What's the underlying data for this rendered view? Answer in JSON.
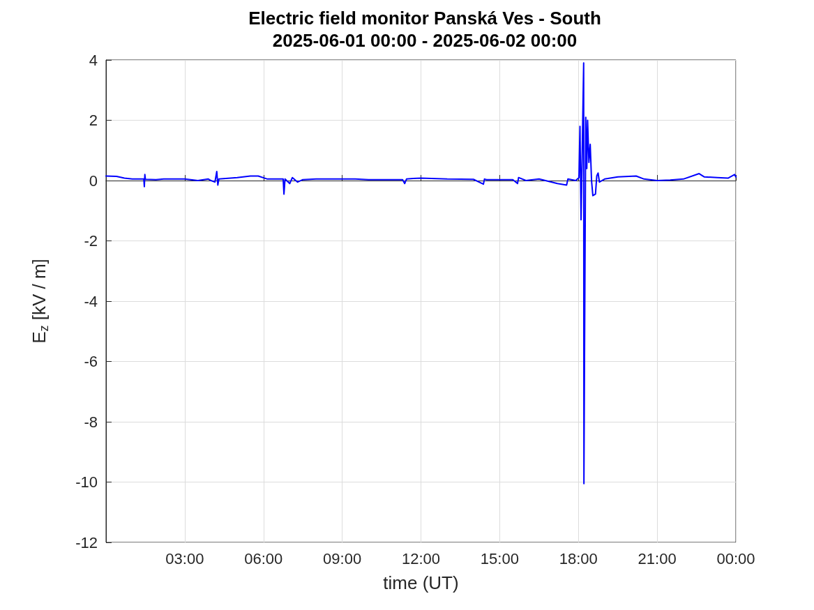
{
  "chart_data": {
    "type": "line",
    "title": "Electric field monitor Panská Ves - South",
    "subtitle": "2025-06-01 00:00 - 2025-06-02 00:00",
    "xlabel": "time (UT)",
    "ylabel": "E$_{z}$ [kV / m]",
    "xlim": [
      0,
      24
    ],
    "xticks": [
      {
        "value": 3,
        "label": "03:00"
      },
      {
        "value": 6,
        "label": "06:00"
      },
      {
        "value": 9,
        "label": "09:00"
      },
      {
        "value": 12,
        "label": "12:00"
      },
      {
        "value": 15,
        "label": "15:00"
      },
      {
        "value": 18,
        "label": "18:00"
      },
      {
        "value": 21,
        "label": "21:00"
      },
      {
        "value": 24,
        "label": "00:00"
      }
    ],
    "ylim": [
      -12,
      4
    ],
    "yticks": [
      -12,
      -10,
      -8,
      -6,
      -4,
      -2,
      0,
      2,
      4
    ],
    "grid": true,
    "series": [
      {
        "color": "#0000ff",
        "x": [
          0,
          0.4,
          0.7,
          1.0,
          1.3,
          1.44,
          1.46,
          1.48,
          1.5,
          1.9,
          2.2,
          3.0,
          3.5,
          3.9,
          4.0,
          4.15,
          4.22,
          4.26,
          4.3,
          5.0,
          5.5,
          5.8,
          6.15,
          6.75,
          6.78,
          6.82,
          7.0,
          7.1,
          7.3,
          7.5,
          8,
          8.5,
          9.5,
          10,
          11,
          11.3,
          11.38,
          11.45,
          11.7,
          12,
          13,
          14,
          14.38,
          14.42,
          14.5,
          15.5,
          15.68,
          15.72,
          16,
          16.5,
          17.2,
          17.55,
          17.6,
          17.9,
          18.02,
          18.06,
          18.1,
          18.15,
          18.2,
          18.21,
          18.23,
          18.28,
          18.32,
          18.35,
          18.4,
          18.45,
          18.5,
          18.55,
          18.65,
          18.7,
          18.75,
          18.8,
          19,
          19.5,
          20.2,
          20.5,
          21,
          21.5,
          22,
          22.6,
          22.8,
          23.3,
          23.7,
          23.95,
          24
        ],
        "values": [
          0.15,
          0.14,
          0.08,
          0.05,
          0.05,
          0.05,
          -0.2,
          0.2,
          0.04,
          0.03,
          0.05,
          0.05,
          0,
          0.05,
          0,
          -0.05,
          0.3,
          -0.15,
          0.05,
          0.1,
          0.15,
          0.15,
          0.05,
          0.05,
          -0.45,
          0.05,
          -0.1,
          0.1,
          -0.05,
          0.03,
          0.05,
          0.05,
          0.05,
          0.03,
          0.03,
          0.03,
          -0.1,
          0.05,
          0.07,
          0.08,
          0.05,
          0.04,
          -0.12,
          0.05,
          0.03,
          0.03,
          -0.1,
          0.1,
          0,
          0.05,
          -0.1,
          -0.15,
          0.05,
          0,
          0.1,
          1.8,
          -1.3,
          1.2,
          3.9,
          -10.05,
          -6.3,
          2.1,
          0.4,
          2,
          0.6,
          1.2,
          0,
          -0.5,
          -0.45,
          0.16,
          0.25,
          -0.05,
          0.05,
          0.12,
          0.15,
          0.05,
          0,
          0.02,
          0.05,
          0.23,
          0.12,
          0.1,
          0.08,
          0.2,
          0.12
        ]
      }
    ]
  }
}
